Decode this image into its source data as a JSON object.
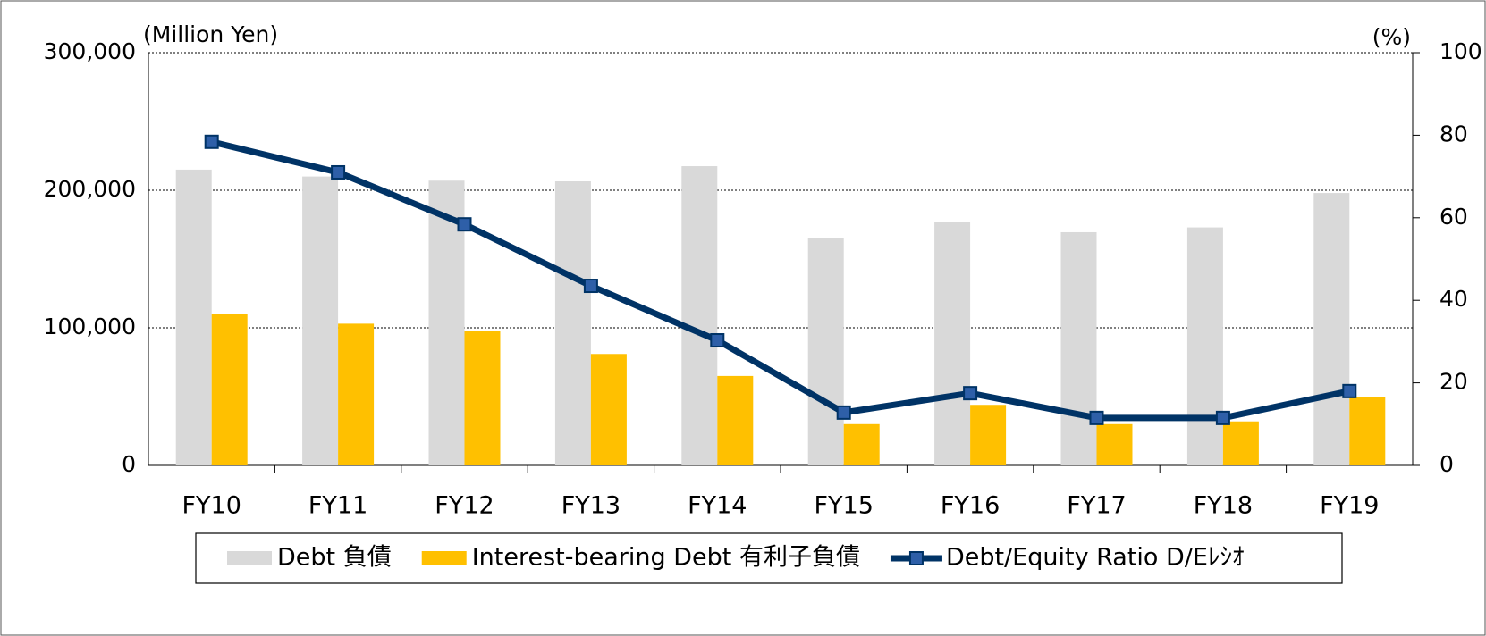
{
  "chart_data": {
    "type": "bar",
    "y_label": "(Million Yen)",
    "y2_label": "(%)",
    "categories": [
      "FY10",
      "FY11",
      "FY12",
      "FY13",
      "FY14",
      "FY15",
      "FY16",
      "FY17",
      "FY18",
      "FY19"
    ],
    "series": [
      {
        "name": "Debt 負債",
        "color": "#d9d9d9",
        "values": [
          215000,
          210000,
          207000,
          206500,
          217500,
          165500,
          177000,
          169500,
          173000,
          198000
        ]
      },
      {
        "name": "Interest-bearing Debt  有利子負債",
        "color": "#ffc000",
        "values": [
          110000,
          103000,
          98000,
          81000,
          65000,
          30000,
          44000,
          30000,
          32000,
          50000
        ]
      },
      {
        "name": "Debt/Equity Ratio D/Eﾚｼｵ",
        "color": "#003366",
        "type": "line",
        "axis": "y2",
        "values": [
          78.4,
          71,
          58.4,
          43.5,
          30.3,
          12.8,
          17.5,
          11.5,
          11.5,
          18
        ]
      }
    ],
    "ylim": [
      0,
      300000
    ],
    "yticks": [
      0,
      {
        "value": 100000,
        "label": "100,000"
      },
      {
        "value": 200000,
        "label": "200,000"
      },
      {
        "value": 300000,
        "label": "300,000"
      }
    ],
    "y2lim": [
      0,
      100
    ],
    "y2ticks": [
      0,
      20,
      40,
      60,
      80,
      100
    ],
    "grid": true,
    "legend": "bottom"
  }
}
